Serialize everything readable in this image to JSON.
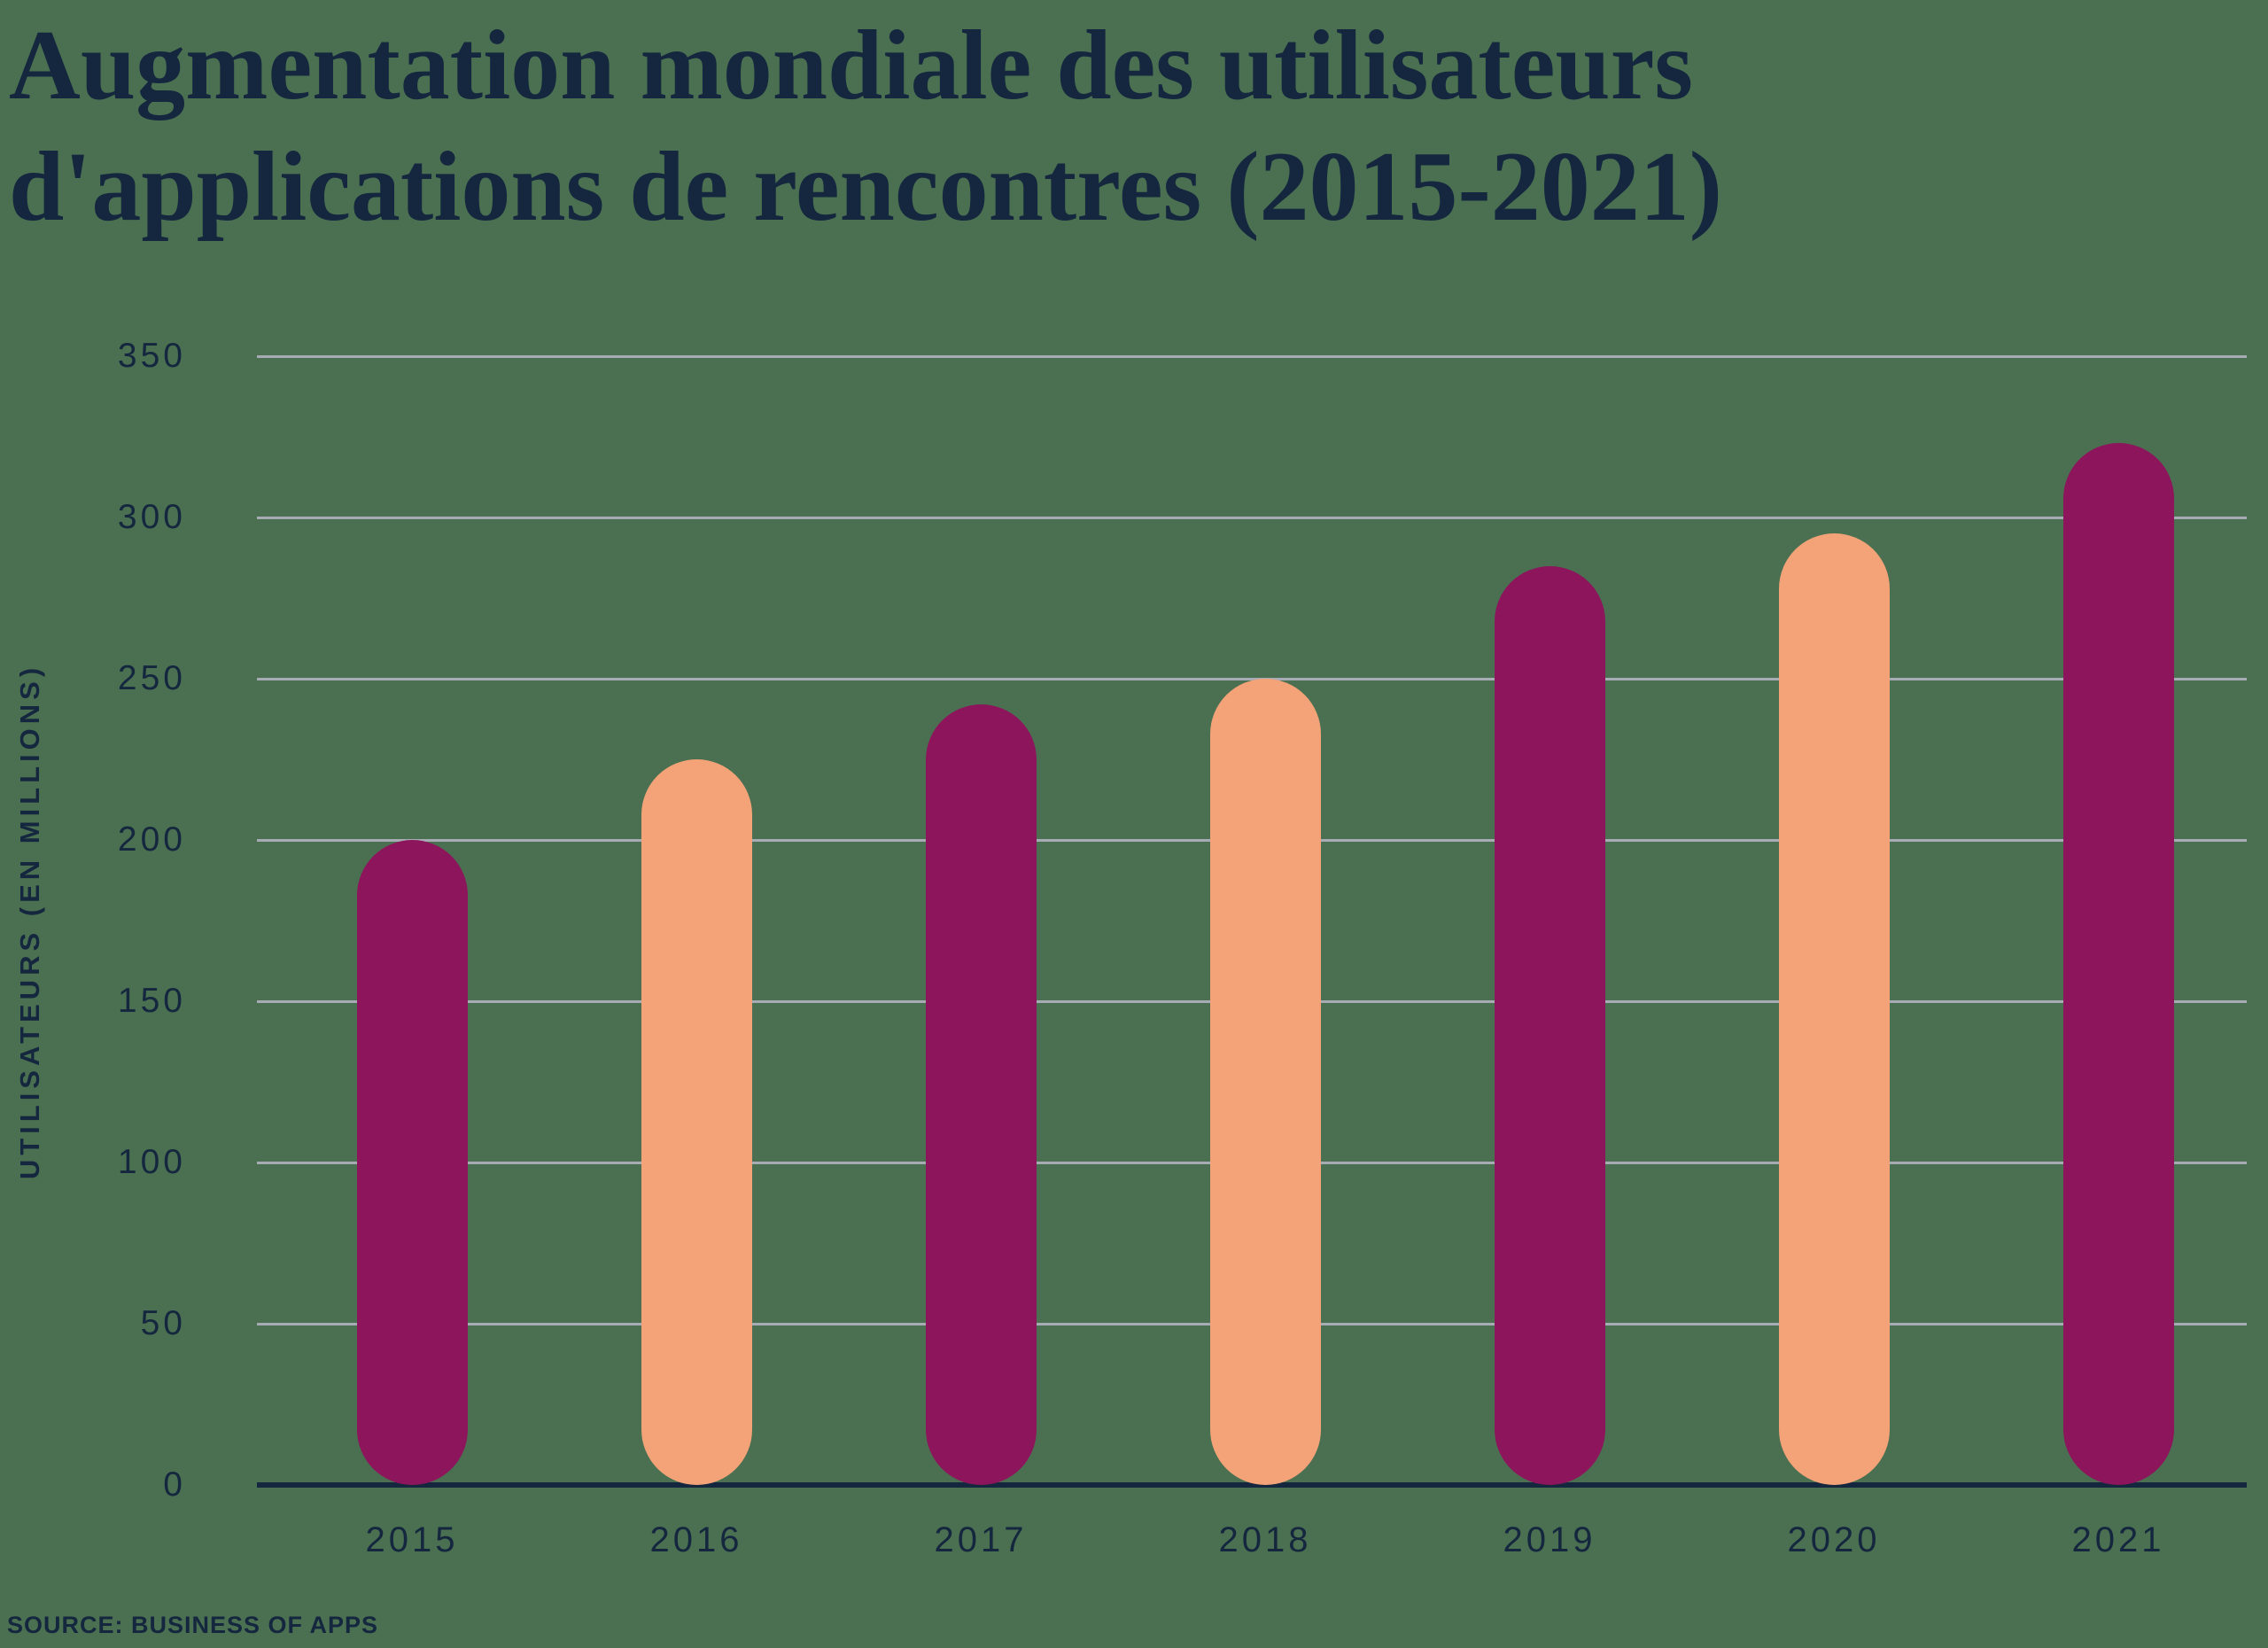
{
  "title": {
    "line1": "Augmentation mondiale des utilisateurs",
    "line2": "d'applications de rencontres (2015-2021)"
  },
  "source_label": "SOURCE: BUSINESS OF APPS",
  "chart_data": {
    "type": "bar",
    "title": "Augmentation mondiale des utilisateurs d'applications de rencontres (2015-2021)",
    "categories": [
      "2015",
      "2016",
      "2017",
      "2018",
      "2019",
      "2020",
      "2021"
    ],
    "values": [
      200,
      225,
      242,
      250,
      285,
      295,
      323
    ],
    "xlabel": "",
    "ylabel": "UTILISATEURS (EN MILLIONS)",
    "ylim": [
      0,
      350
    ],
    "yticks": [
      0,
      50,
      100,
      150,
      200,
      250,
      300,
      350
    ],
    "grid": true,
    "legend": false,
    "bar_color_pattern": "alternating",
    "source": "SOURCE: BUSINESS OF APPS"
  },
  "colors": {
    "background": "#4B7051",
    "navy_text": "#14273E",
    "gridline": "#A7ABB3",
    "bar_dark_magenta": "#8C155C",
    "bar_light_peach": "#F3A377"
  }
}
